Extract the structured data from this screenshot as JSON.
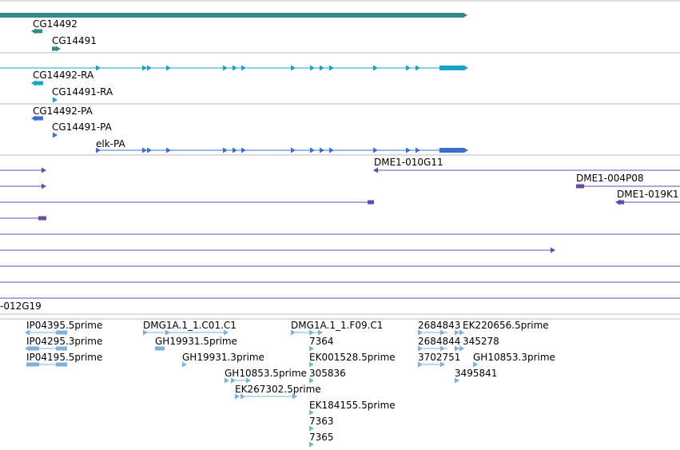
{
  "colors": {
    "gene": "#338a8a",
    "transcript": "#1aa3c9",
    "protein": "#3a6fd0",
    "clone": "#6a4aa8",
    "est": "#7ab3dc",
    "track_divider": "#bbbbbb"
  },
  "gene_track": {
    "labels": [
      "CG14492",
      "CG14491"
    ]
  },
  "transcript_track": {
    "labels": [
      "CG14492-RA",
      "CG14491-RA"
    ]
  },
  "protein_track": {
    "labels": [
      "CG14492-PA",
      "CG14491-PA",
      "elk-PA"
    ]
  },
  "clone_track": {
    "labels": [
      "DME1-010G11",
      "DME1-004P08",
      "DME1-019K1",
      "-012G19"
    ]
  },
  "est_track": {
    "labels": [
      "IP04395.5prime",
      "IP04295.3prime",
      "IP04195.5prime",
      "DMG1A.1_1.C01.C1",
      "GH19931.5prime",
      "GH19931.3prime",
      "GH10853.5prime",
      "EK267302.5prime",
      "DMG1A.1_1.F09.C1",
      "7364",
      "EK001528.5prime",
      "305836",
      "EK184155.5prime",
      "7363",
      "7365",
      "2684843",
      "EK220656.5prime",
      "2684844",
      "345278",
      "3702751",
      "GH10853.3prime",
      "3495841"
    ]
  }
}
